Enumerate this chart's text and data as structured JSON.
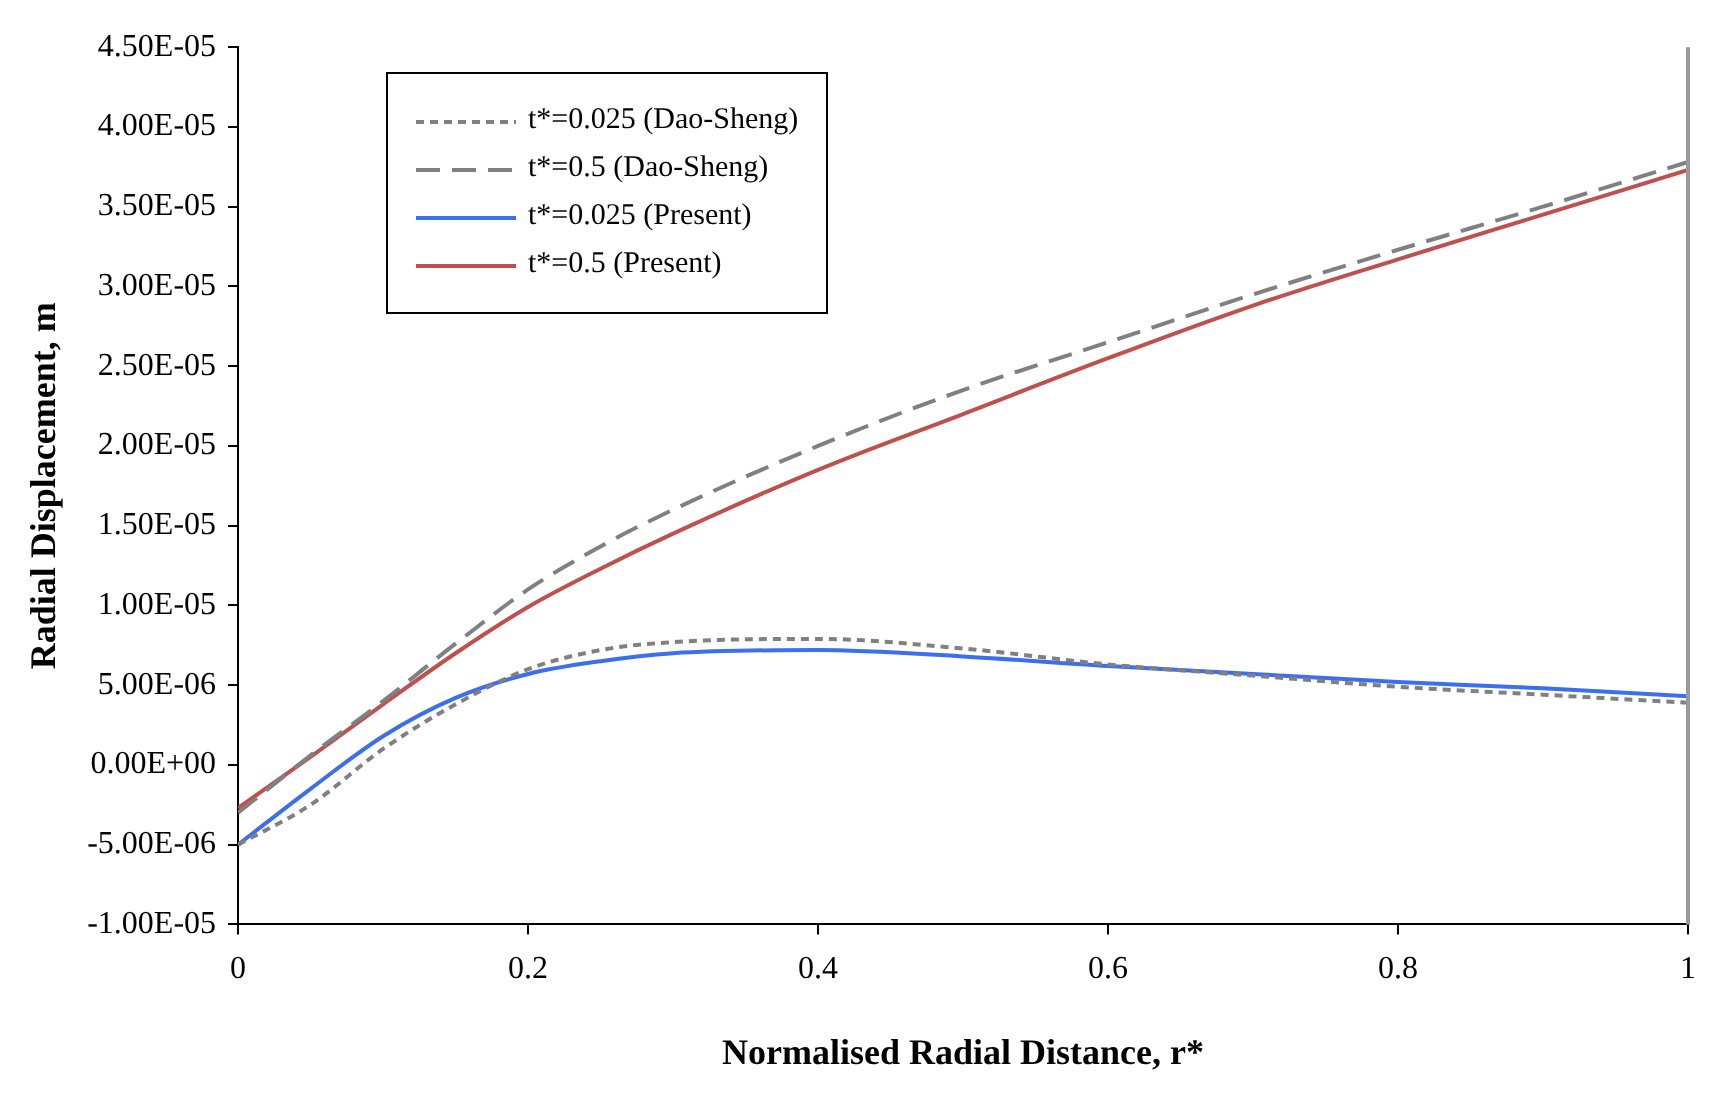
{
  "chart_data": {
    "type": "line",
    "xlabel": "Normalised Radial Distance, r*",
    "ylabel": "Radial Displacement, m",
    "x": [
      0,
      0.05,
      0.1,
      0.15,
      0.2,
      0.25,
      0.3,
      0.4,
      0.5,
      0.6,
      0.7,
      0.8,
      0.9,
      1.0
    ],
    "series": [
      {
        "name": "t*=0.025 (Dao-Sheng)",
        "color": "#808080",
        "line_style": "dotted",
        "values": [
          -5e-06,
          -2.5e-06,
          1e-06,
          3.8e-06,
          6e-06,
          7.2e-06,
          7.7e-06,
          7.9e-06,
          7.3e-06,
          6.3e-06,
          5.6e-06,
          4.9e-06,
          4.4e-06,
          3.9e-06
        ]
      },
      {
        "name": "t*=0.5 (Dao-Sheng)",
        "color": "#808080",
        "line_style": "dashed",
        "values": [
          -3e-06,
          6e-07,
          4e-06,
          7.6e-06,
          1.1e-05,
          1.37e-05,
          1.6e-05,
          2e-05,
          2.35e-05,
          2.65e-05,
          2.95e-05,
          3.23e-05,
          3.5e-05,
          3.78e-05
        ]
      },
      {
        "name": "t*=0.025 (Present)",
        "color": "#3c6ff0",
        "line_style": "solid",
        "values": [
          -5e-06,
          -1.5e-06,
          1.8e-06,
          4.2e-06,
          5.7e-06,
          6.5e-06,
          7e-06,
          7.2e-06,
          6.8e-06,
          6.2e-06,
          5.7e-06,
          5.2e-06,
          4.8e-06,
          4.3e-06
        ]
      },
      {
        "name": "t*=0.5 (Present)",
        "color": "#c0504d",
        "line_style": "solid",
        "values": [
          -2.7e-06,
          5e-07,
          3.8e-06,
          7e-06,
          9.9e-06,
          1.23e-05,
          1.45e-05,
          1.85e-05,
          2.2e-05,
          2.55e-05,
          2.88e-05,
          3.17e-05,
          3.45e-05,
          3.73e-05
        ]
      }
    ],
    "xlim": [
      0,
      1
    ],
    "xticks": [
      0,
      0.2,
      0.4,
      0.6,
      0.8,
      1
    ],
    "ylim": [
      -1e-05,
      4.5e-05
    ],
    "yticks": [
      {
        "value": -1e-05,
        "label": "-1.00E-05"
      },
      {
        "value": -5e-06,
        "label": "-5.00E-06"
      },
      {
        "value": 0,
        "label": "0.00E+00"
      },
      {
        "value": 5e-06,
        "label": "5.00E-06"
      },
      {
        "value": 1e-05,
        "label": "1.00E-05"
      },
      {
        "value": 1.5e-05,
        "label": "1.50E-05"
      },
      {
        "value": 2e-05,
        "label": "2.00E-05"
      },
      {
        "value": 2.5e-05,
        "label": "2.50E-05"
      },
      {
        "value": 3e-05,
        "label": "3.00E-05"
      },
      {
        "value": 3.5e-05,
        "label": "3.50E-05"
      },
      {
        "value": 4e-05,
        "label": "4.00E-05"
      },
      {
        "value": 4.5e-05,
        "label": "4.50E-05"
      }
    ],
    "grid": false,
    "legend": "top left",
    "marker": "none"
  }
}
